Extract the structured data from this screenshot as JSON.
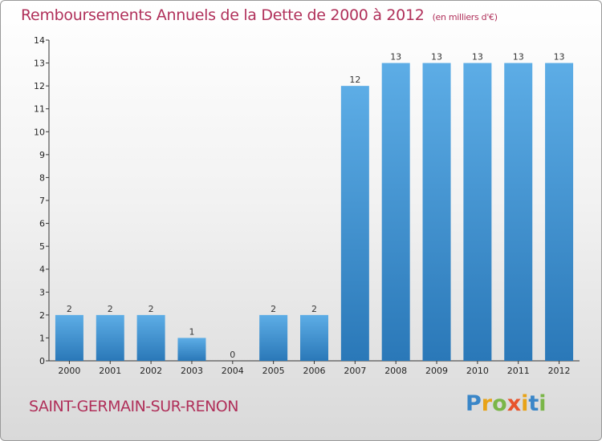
{
  "title": "Remboursements Annuels de la Dette de 2000 à 2012",
  "unit": "(en milliers d'€)",
  "commune": "SAINT-GERMAIN-SUR-RENON",
  "logo": "Proxiti",
  "colors": {
    "bar_light": "#5dade6",
    "bar_dark": "#2a78b8",
    "title": "#b0305a"
  },
  "chart_data": {
    "type": "bar",
    "title": "Remboursements Annuels de la Dette de 2000 à 2012",
    "subtitle": "(en milliers d'€)",
    "categories": [
      "2000",
      "2001",
      "2002",
      "2003",
      "2004",
      "2005",
      "2006",
      "2007",
      "2008",
      "2009",
      "2010",
      "2011",
      "2012"
    ],
    "values": [
      2,
      2,
      2,
      1,
      0,
      2,
      2,
      12,
      13,
      13,
      13,
      13,
      13
    ],
    "ylim": [
      0,
      14
    ],
    "yticks": [
      0,
      1,
      2,
      3,
      4,
      5,
      6,
      7,
      8,
      9,
      10,
      11,
      12,
      13,
      14
    ],
    "grid": false,
    "legend": "none"
  }
}
